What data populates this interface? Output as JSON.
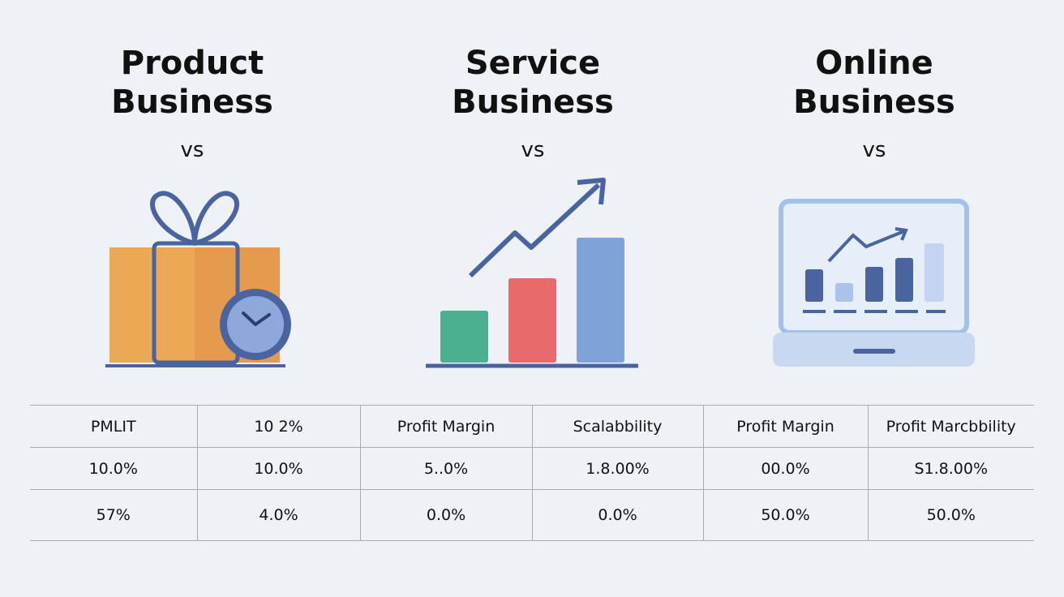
{
  "columns": [
    {
      "title": "Product Business",
      "vs": "vs"
    },
    {
      "title": "Service Business",
      "vs": "vs"
    },
    {
      "title": "Online Business",
      "vs": "vs"
    }
  ],
  "table": {
    "rows": [
      [
        "PMLIT",
        "10 2%",
        "Profit Margin",
        "Scalabbility",
        "Profit Margin",
        "Profit Marcbbility"
      ],
      [
        "10.0%",
        "10.0%",
        "5..0%",
        "1.8.00%",
        "00.0%",
        "S1.8.00%"
      ],
      [
        "57%",
        "4.0%",
        "0.0%",
        "0.0%",
        "50.0%",
        "50.0%"
      ]
    ]
  }
}
